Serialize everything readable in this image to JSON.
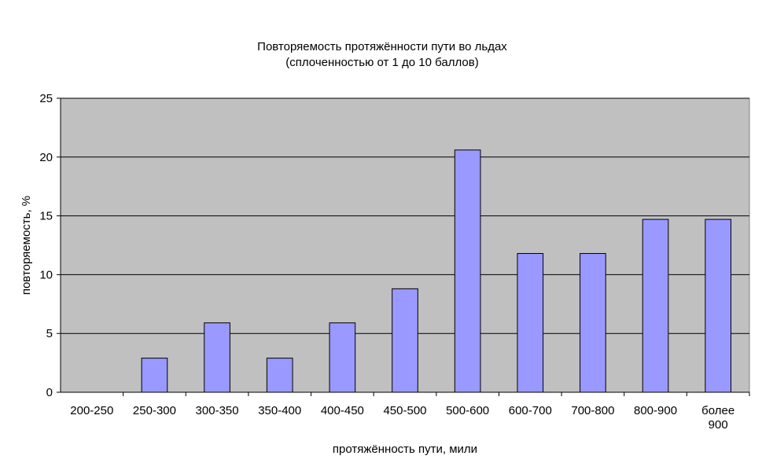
{
  "chart_data": {
    "type": "bar",
    "title": "Повторяемость протяжённости пути во льдах",
    "subtitle": "(сплоченностью от 1 до 10 баллов)",
    "xlabel": "протяжённость пути, мили",
    "ylabel": "повторяемость, %",
    "categories": [
      "200-250",
      "250-300",
      "300-350",
      "350-400",
      "400-450",
      "450-500",
      "500-600",
      "600-700",
      "700-800",
      "800-900",
      "более 900"
    ],
    "values": [
      0,
      2.9,
      5.9,
      2.9,
      5.9,
      8.8,
      20.6,
      11.8,
      11.8,
      14.7,
      14.7
    ],
    "ylim": [
      0,
      25
    ],
    "yticks": [
      "0",
      "5",
      "10",
      "15",
      "20",
      "25"
    ],
    "grid": true,
    "colors": {
      "plot_background": "#c0c0c0",
      "bar_fill": "#9999ff",
      "bar_stroke": "#000000",
      "grid": "#000000"
    }
  }
}
